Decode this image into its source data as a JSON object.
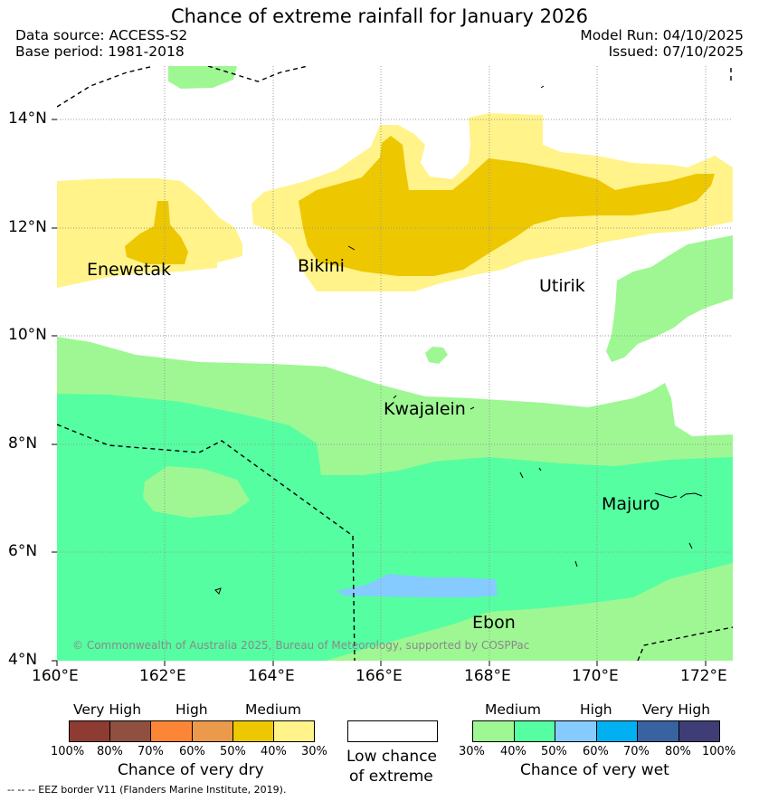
{
  "title": "Chance of extreme rainfall for January 2026",
  "header": {
    "data_source": "Data source: ACCESS-S2",
    "base_period": "Base period: 1981-2018",
    "model_run": "Model Run: 04/10/2025",
    "issued": "Issued: 07/10/2025"
  },
  "map": {
    "places": {
      "enewetak": "Enewetak",
      "bikini": "Bikini",
      "utirik": "Utirik",
      "kwajalein": "Kwajalein",
      "majuro": "Majuro",
      "ebon": "Ebon"
    },
    "x_ticks": [
      "160°E",
      "162°E",
      "164°E",
      "166°E",
      "168°E",
      "170°E",
      "172°E"
    ],
    "y_ticks": [
      "14°N",
      "12°N",
      "10°N",
      "8°N",
      "6°N",
      "4°N"
    ],
    "copyright": "© Commonwealth of Australia 2025, Bureau of Meteorology, supported by COSPPac"
  },
  "legend_dry": {
    "headers": [
      "Very High",
      "High",
      "Medium"
    ],
    "colors": [
      "#8e3b32",
      "#8f5040",
      "#fd8636",
      "#ea9a4a",
      "#edc700",
      "#fff38a"
    ],
    "percents": [
      "100%",
      "80%",
      "70%",
      "60%",
      "50%",
      "40%",
      "30%"
    ],
    "title": "Chance of very dry"
  },
  "legend_low": {
    "line1": "Low chance",
    "line2": "of extreme",
    "color": "#ffffff"
  },
  "legend_wet": {
    "headers": [
      "Medium",
      "High",
      "Very High"
    ],
    "colors": [
      "#9ef793",
      "#55fea1",
      "#86cbff",
      "#00b0f0",
      "#3963a0",
      "#3f3d76"
    ],
    "percents": [
      "30%",
      "40%",
      "50%",
      "60%",
      "70%",
      "80%",
      "100%"
    ],
    "title": "Chance of very wet"
  },
  "eez_note": "--  --  -- EEZ border V11 (Flanders Marine Institute, 2019)."
}
